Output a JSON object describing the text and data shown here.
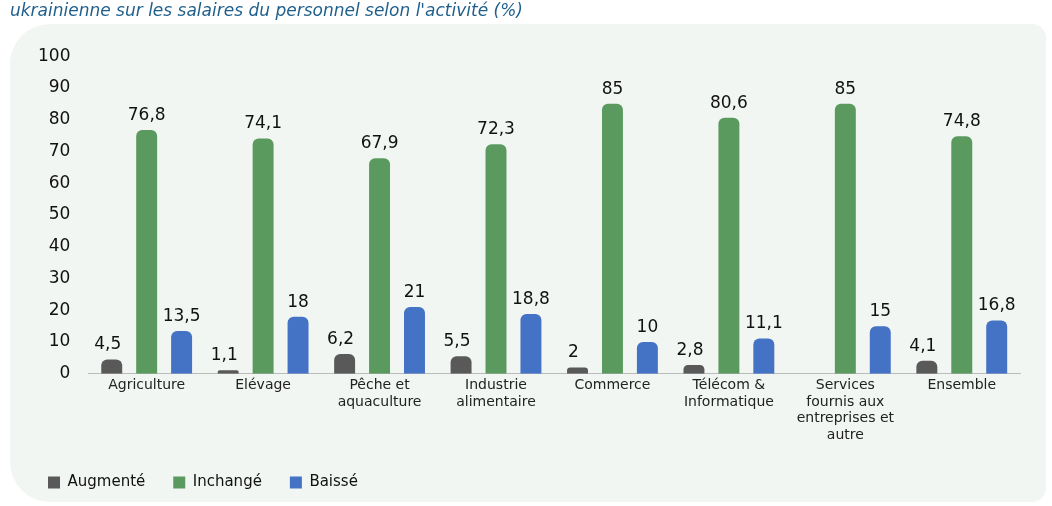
{
  "chart_data": {
    "type": "bar",
    "title": "ukrainienne sur les salaires du personnel selon l'activité (%)",
    "categories": [
      "Agriculture",
      "Elévage",
      "Pêche et aquaculture",
      "Industrie alimentaire",
      "Commerce",
      "Télécom & Informatique",
      "Services fournis aux entreprises et autre",
      "Ensemble"
    ],
    "series": [
      {
        "name": "Augmenté",
        "color": "#595959",
        "values": [
          4.5,
          1.1,
          6.2,
          5.5,
          2,
          2.8,
          null,
          4.1
        ],
        "value_labels": [
          "4,5",
          "1,1",
          "6,2",
          "5,5",
          "2",
          "2,8",
          null,
          "4,1"
        ]
      },
      {
        "name": "Inchangé",
        "color": "#5a9a5e",
        "values": [
          76.8,
          74.1,
          67.9,
          72.3,
          85,
          80.6,
          85,
          74.8
        ],
        "value_labels": [
          "76,8",
          "74,1",
          "67,9",
          "72,3",
          "85",
          "80,6",
          "85",
          "74,8"
        ]
      },
      {
        "name": "Baissé",
        "color": "#4472c4",
        "values": [
          13.5,
          18,
          21,
          18.8,
          10,
          11.1,
          15,
          16.8
        ],
        "value_labels": [
          "13,5",
          "18",
          "21",
          "18,8",
          "10",
          "11,1",
          "15",
          "16,8"
        ]
      }
    ],
    "ylim": [
      0,
      100
    ],
    "yticks": [
      0,
      10,
      20,
      30,
      40,
      50,
      60,
      70,
      80,
      90,
      100
    ],
    "grid": false,
    "legend": "bottom left"
  }
}
